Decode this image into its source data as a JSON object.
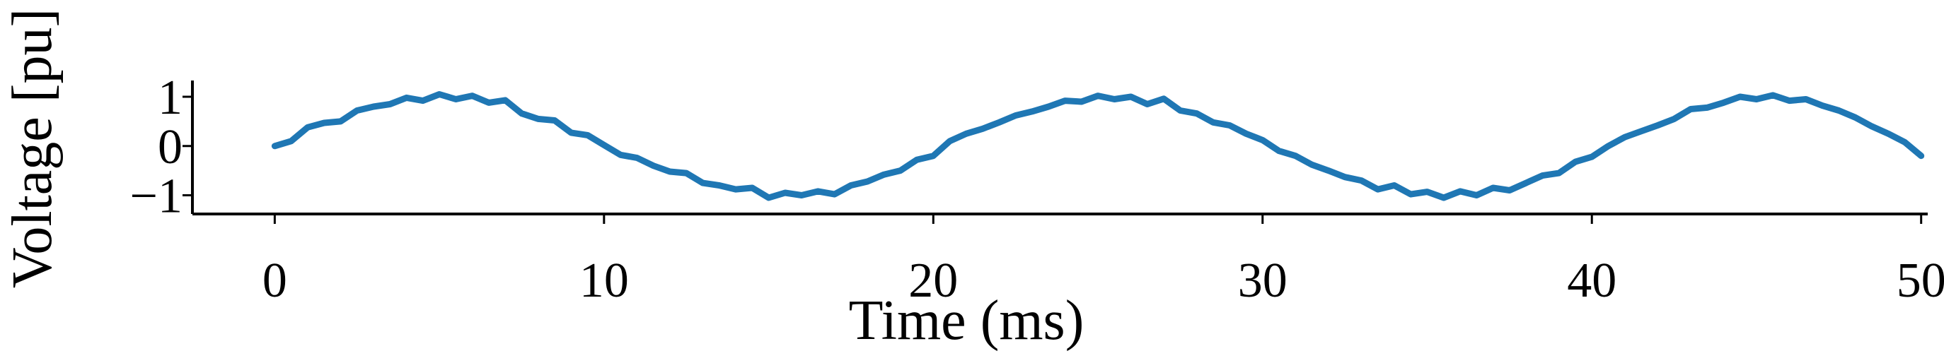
{
  "chart_data": {
    "type": "line",
    "xlabel": "Time (ms)",
    "ylabel": "Voltage [pu]",
    "x": [
      0,
      0.5,
      1,
      1.5,
      2,
      2.5,
      3,
      3.5,
      4,
      4.5,
      5,
      5.5,
      6,
      6.5,
      7,
      7.5,
      8,
      8.5,
      9,
      9.5,
      10,
      10.5,
      11,
      11.5,
      12,
      12.5,
      13,
      13.5,
      14,
      14.5,
      15,
      15.5,
      16,
      16.5,
      17,
      17.5,
      18,
      18.5,
      19,
      19.5,
      20,
      20.5,
      21,
      21.5,
      22,
      22.5,
      23,
      23.5,
      24,
      24.5,
      25,
      25.5,
      26,
      26.5,
      27,
      27.5,
      28,
      28.5,
      29,
      29.5,
      30,
      30.5,
      31,
      31.5,
      32,
      32.5,
      33,
      33.5,
      34,
      34.5,
      35,
      35.5,
      36,
      36.5,
      37,
      37.5,
      38,
      38.5,
      39,
      39.5,
      40,
      40.5,
      41,
      41.5,
      42,
      42.5,
      43,
      43.5,
      44,
      44.5,
      45,
      45.5,
      46,
      46.5,
      47,
      47.5,
      48,
      48.5,
      49,
      49.5,
      50
    ],
    "series": [
      {
        "name": "Voltage",
        "color": "#1f77b4",
        "values": [
          0.0,
          0.1,
          0.38,
          0.47,
          0.5,
          0.72,
          0.8,
          0.85,
          0.98,
          0.92,
          1.05,
          0.95,
          1.02,
          0.88,
          0.93,
          0.66,
          0.55,
          0.52,
          0.27,
          0.22,
          0.02,
          -0.18,
          -0.24,
          -0.4,
          -0.52,
          -0.55,
          -0.75,
          -0.8,
          -0.88,
          -0.85,
          -1.05,
          -0.95,
          -1.0,
          -0.92,
          -0.98,
          -0.8,
          -0.72,
          -0.58,
          -0.5,
          -0.28,
          -0.2,
          0.1,
          0.25,
          0.35,
          0.48,
          0.62,
          0.7,
          0.8,
          0.92,
          0.9,
          1.02,
          0.95,
          1.0,
          0.85,
          0.96,
          0.72,
          0.66,
          0.48,
          0.42,
          0.25,
          0.12,
          -0.1,
          -0.2,
          -0.38,
          -0.5,
          -0.63,
          -0.7,
          -0.88,
          -0.8,
          -0.98,
          -0.93,
          -1.05,
          -0.92,
          -1.0,
          -0.85,
          -0.9,
          -0.75,
          -0.6,
          -0.55,
          -0.32,
          -0.22,
          0.0,
          0.18,
          0.3,
          0.42,
          0.55,
          0.75,
          0.78,
          0.88,
          1.0,
          0.95,
          1.03,
          0.92,
          0.95,
          0.82,
          0.72,
          0.58,
          0.4,
          0.25,
          0.08,
          -0.2
        ]
      }
    ],
    "xlim": [
      -2.5,
      50.2
    ],
    "xticks": [
      0,
      10,
      20,
      30,
      40,
      50
    ],
    "ylim": [
      -1.38,
      1.33
    ],
    "yticks": [
      1,
      0,
      {
        "value": -1,
        "label": "−1"
      }
    ]
  }
}
